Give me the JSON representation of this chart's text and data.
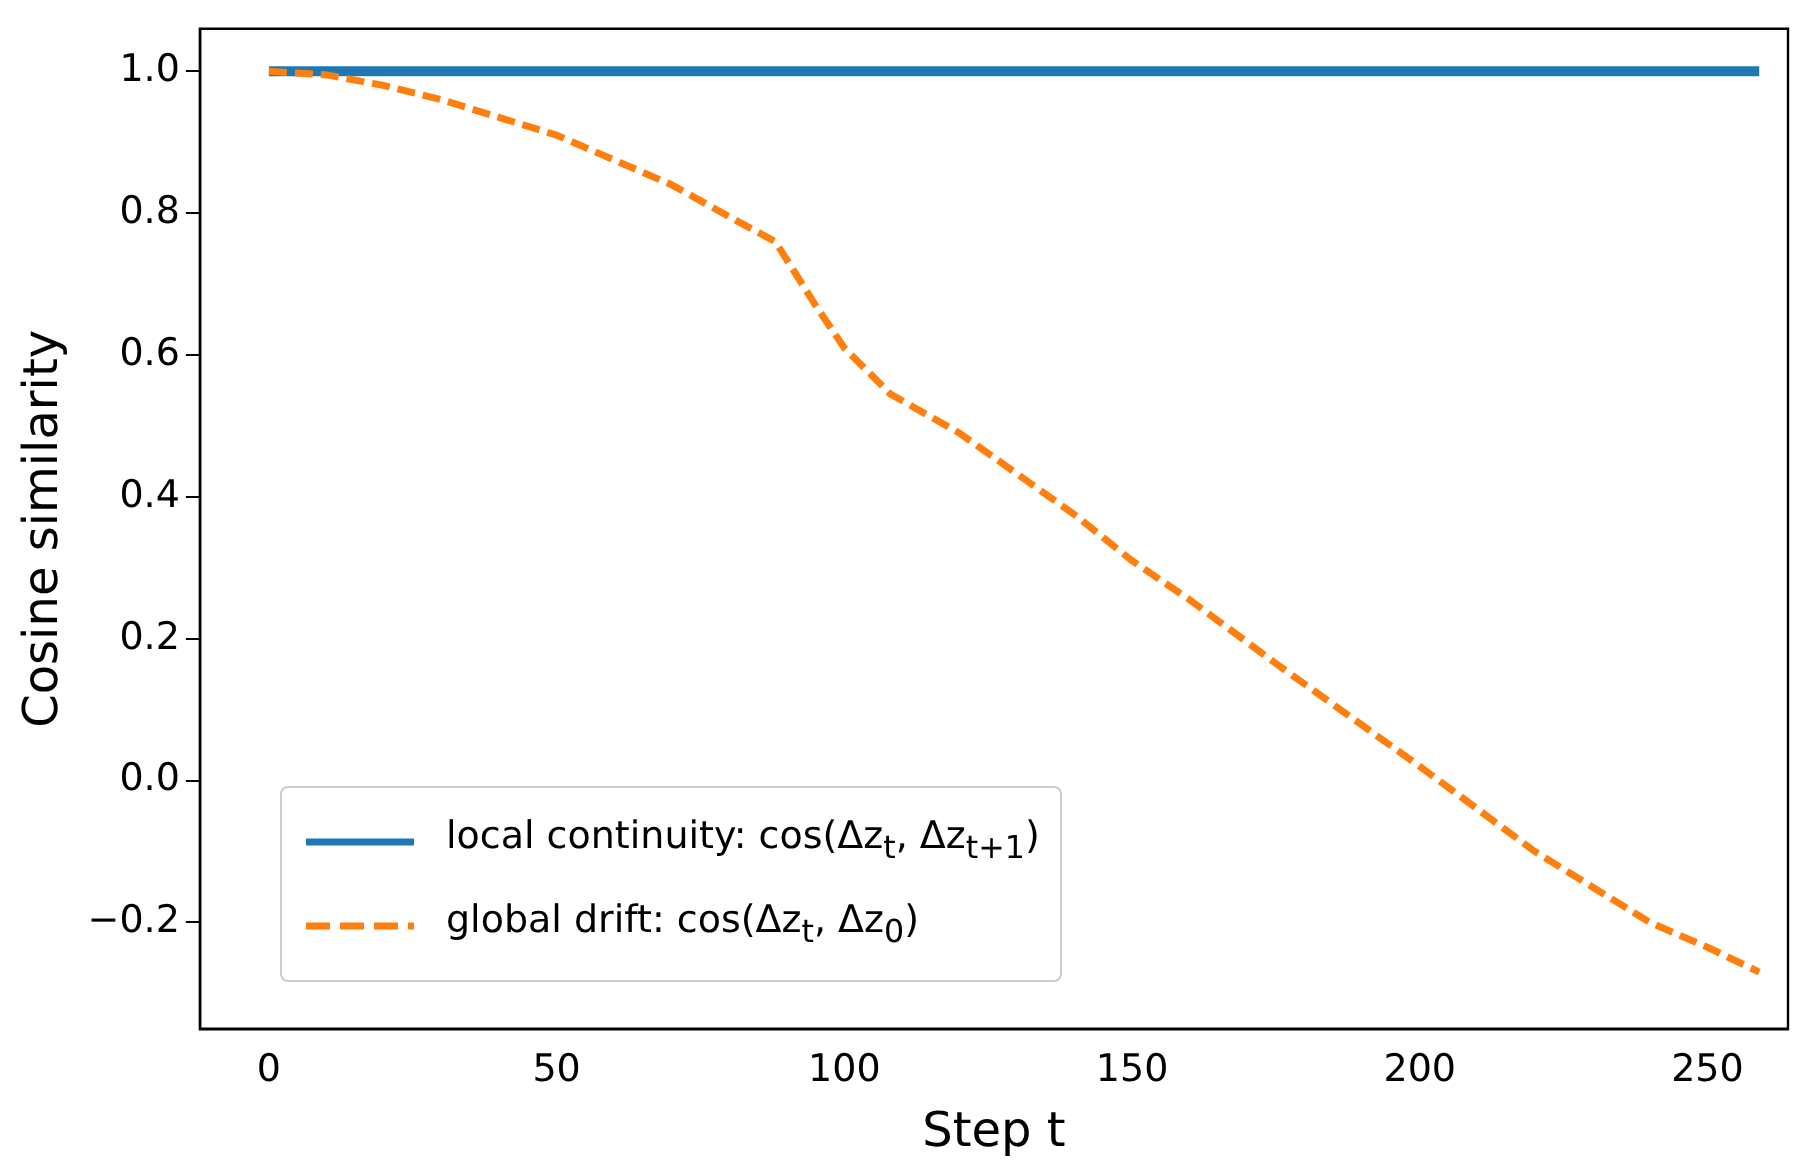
{
  "chart_data": {
    "type": "line",
    "xlabel": "Step t",
    "ylabel": "Cosine similarity",
    "xlim": [
      -12,
      264
    ],
    "ylim": [
      -0.35,
      1.06
    ],
    "xticks": [
      0,
      50,
      100,
      150,
      200,
      250
    ],
    "yticks": [
      {
        "value": -0.2,
        "label": "−0.2"
      },
      {
        "value": 0,
        "label": "0.0"
      },
      0.2,
      0.4,
      0.6,
      0.8,
      {
        "value": 1,
        "label": "1.0"
      }
    ],
    "grid": false,
    "legend": "bottom left",
    "marker": "none",
    "series": [
      {
        "name": "local continuity: cos(Δz$_{t}$, Δz$_{t+1}$)",
        "color": "#1f77b4",
        "line_style": "solid",
        "x": [
          0,
          259
        ],
        "values": [
          1.0,
          1.0
        ]
      },
      {
        "name": "global drift: cos(Δz$_{t}$, Δz$_{0}$)",
        "color": "#ff7f0e",
        "line_style": "dashed",
        "x": [
          0,
          10,
          20,
          30,
          40,
          50,
          60,
          70,
          80,
          88,
          95,
          100,
          108,
          120,
          140,
          150,
          160,
          175,
          200,
          220,
          240,
          250,
          259
        ],
        "values": [
          1.0,
          0.995,
          0.98,
          0.96,
          0.935,
          0.91,
          0.875,
          0.84,
          0.795,
          0.76,
          0.67,
          0.61,
          0.545,
          0.49,
          0.375,
          0.31,
          0.255,
          0.165,
          0.02,
          -0.1,
          -0.2,
          -0.235,
          -0.27
        ]
      }
    ]
  }
}
